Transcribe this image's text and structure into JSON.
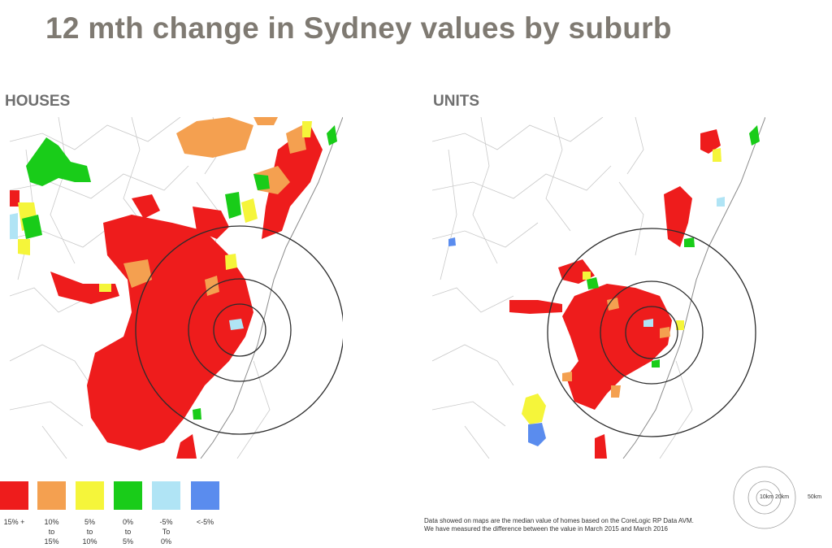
{
  "title": "12 mth change in Sydney values by suburb",
  "panels": {
    "houses": {
      "label": "HOUSES"
    },
    "units": {
      "label": "UNITS"
    }
  },
  "legend": {
    "items": [
      {
        "lines": [
          "15% +"
        ],
        "color": "#ee1c1c"
      },
      {
        "lines": [
          "10%",
          "to",
          "15%"
        ],
        "color": "#f4a050"
      },
      {
        "lines": [
          "5%",
          "to",
          "10%"
        ],
        "color": "#f5f53a"
      },
      {
        "lines": [
          "0%",
          "to",
          "5%"
        ],
        "color": "#19cc19"
      },
      {
        "lines": [
          "-5%",
          "To",
          "0%"
        ],
        "color": "#b0e4f5"
      },
      {
        "lines": [
          "<-5%"
        ],
        "color": "#5a8cee"
      }
    ]
  },
  "scale": {
    "labels": [
      "10km",
      "20km",
      "50km"
    ]
  },
  "note": {
    "text": "Data showed on maps are the median value of homes based on the CoreLogic RP Data AVM. We have measured the difference between the value in March 2015 and March 2016"
  }
}
